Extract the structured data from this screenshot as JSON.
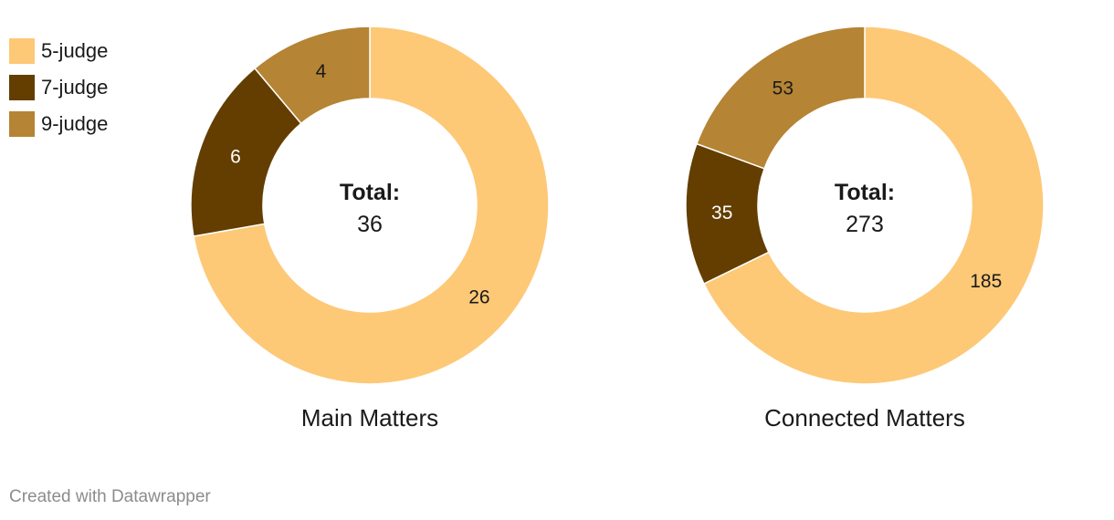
{
  "chart_data": [
    {
      "type": "pie",
      "title": "Main Matters",
      "center_label": "Total:",
      "total": 36,
      "categories": [
        "5-judge",
        "7-judge",
        "9-judge"
      ],
      "values": [
        26,
        6,
        4
      ]
    },
    {
      "type": "pie",
      "title": "Connected Matters",
      "center_label": "Total:",
      "total": 273,
      "categories": [
        "5-judge",
        "7-judge",
        "9-judge"
      ],
      "values": [
        185,
        35,
        53
      ]
    }
  ],
  "legend": {
    "placement": "top-left",
    "items": [
      {
        "label": "5-judge",
        "color": "#FDC977"
      },
      {
        "label": "7-judge",
        "color": "#633E00"
      },
      {
        "label": "9-judge",
        "color": "#B58434"
      }
    ]
  },
  "label_colors": {
    "on_light": "#1a1a1a",
    "on_dark": "#ffffff"
  },
  "footer": {
    "text": "Created with Datawrapper"
  }
}
